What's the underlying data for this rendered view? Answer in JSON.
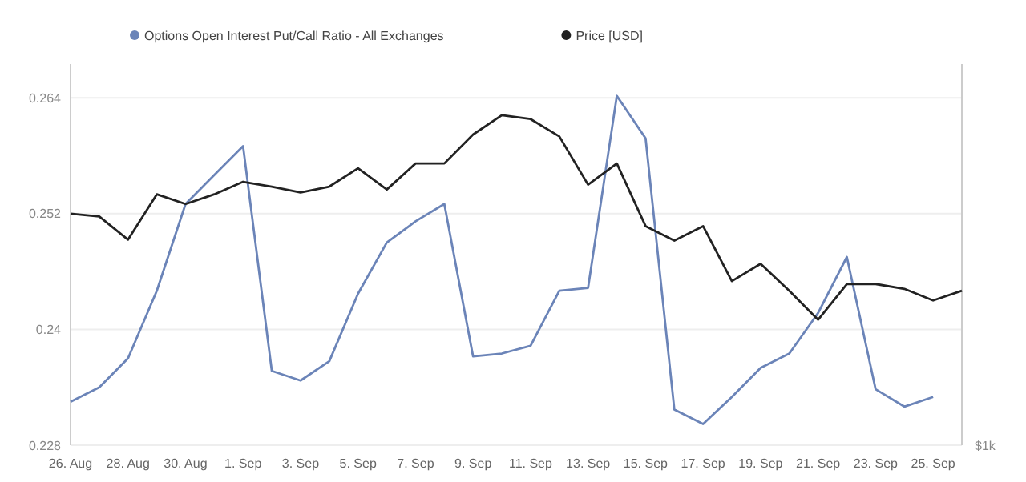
{
  "chart_data": {
    "type": "line",
    "x": [
      "--08-26",
      "--08-27",
      "--08-28",
      "--08-29",
      "--08-30",
      "--08-31",
      "--09-01",
      "--09-02",
      "--09-03",
      "--09-04",
      "--09-05",
      "--09-06",
      "--09-07",
      "--09-08",
      "--09-09",
      "--09-10",
      "--09-11",
      "--09-12",
      "--09-13",
      "--09-14",
      "--09-15",
      "--09-16",
      "--09-17",
      "--09-18",
      "--09-19",
      "--09-20",
      "--09-21",
      "--09-22",
      "--09-23",
      "--09-24",
      "--09-25",
      "--09-26"
    ],
    "series": [
      {
        "name": "Options Open Interest Put/Call Ratio - All Exchanges",
        "color": "#6b84b8",
        "values": [
          0.2325,
          0.234,
          0.237,
          0.244,
          0.253,
          0.256,
          0.259,
          0.2357,
          0.2347,
          0.2367,
          0.2437,
          0.249,
          0.2512,
          0.253,
          0.2372,
          0.2375,
          0.2383,
          0.244,
          0.2443,
          0.2642,
          0.2598,
          0.2317,
          0.2302,
          0.233,
          0.236,
          0.2375,
          0.2417,
          0.2475,
          0.2338,
          0.232,
          0.233,
          null
        ]
      },
      {
        "name": "Price [USD]",
        "color": "#222222",
        "values": [
          0.252,
          0.2517,
          0.2493,
          0.254,
          0.253,
          0.254,
          0.2553,
          0.2548,
          0.2542,
          0.2548,
          0.2567,
          0.2545,
          0.2572,
          0.2572,
          0.2602,
          0.2622,
          0.2618,
          0.26,
          0.255,
          0.2572,
          0.2507,
          0.2492,
          0.2507,
          0.245,
          0.2468,
          0.244,
          0.241,
          0.2447,
          0.2447,
          0.2442,
          0.243,
          0.244
        ]
      }
    ],
    "xlim": [
      "--08-26",
      "--09-26"
    ],
    "xticks": [
      {
        "value": "--08-26",
        "label": "26. Aug"
      },
      {
        "value": "--08-28",
        "label": "28. Aug"
      },
      {
        "value": "--08-30",
        "label": "30. Aug"
      },
      {
        "value": "--09-01",
        "label": "1. Sep"
      },
      {
        "value": "--09-03",
        "label": "3. Sep"
      },
      {
        "value": "--09-05",
        "label": "5. Sep"
      },
      {
        "value": "--09-07",
        "label": "7. Sep"
      },
      {
        "value": "--09-09",
        "label": "9. Sep"
      },
      {
        "value": "--09-11",
        "label": "11. Sep"
      },
      {
        "value": "--09-13",
        "label": "13. Sep"
      },
      {
        "value": "--09-15",
        "label": "15. Sep"
      },
      {
        "value": "--09-17",
        "label": "17. Sep"
      },
      {
        "value": "--09-19",
        "label": "19. Sep"
      },
      {
        "value": "--09-21",
        "label": "21. Sep"
      },
      {
        "value": "--09-23",
        "label": "23. Sep"
      },
      {
        "value": "--09-25",
        "label": "25. Sep"
      }
    ],
    "ylim": [
      0.228,
      0.2675
    ],
    "yticks": [
      0.228,
      0.24,
      0.252,
      0.264
    ],
    "annotations": [
      "$1k"
    ],
    "grid": "y",
    "legend": "top left",
    "marker": "none",
    "line_style": "solid"
  }
}
